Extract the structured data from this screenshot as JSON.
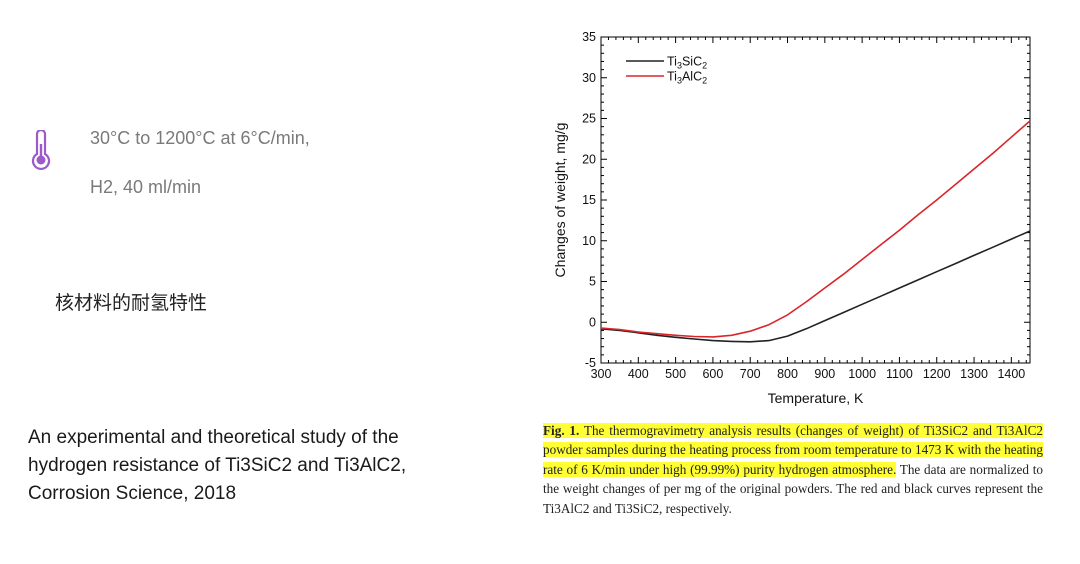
{
  "left_panel": {
    "condition_line1": "30°C to 1200°C at 6°C/min,",
    "condition_line2": "H2, 40 ml/min",
    "chinese_title": "核材料的耐氢特性",
    "reference_line1": "An experimental and theoretical study of the",
    "reference_line2": "hydrogen resistance of Ti3SiC2 and Ti3AlC2,",
    "reference_line3": "Corrosion Science, 2018",
    "icon": "thermometer-icon",
    "icon_color": "#9b59c9"
  },
  "chart_data": {
    "type": "line",
    "xlabel": "Temperature, K",
    "ylabel": "Changes of weight, mg/g",
    "xlim": [
      300,
      1450
    ],
    "ylim": [
      -5,
      35
    ],
    "xticks": [
      300,
      400,
      500,
      600,
      700,
      800,
      900,
      1000,
      1100,
      1200,
      1300,
      1400
    ],
    "yticks": [
      -5,
      0,
      5,
      10,
      15,
      20,
      25,
      30,
      35
    ],
    "legend_position": "top-left",
    "series": [
      {
        "name": "Ti3SiC2",
        "name_parts": [
          "Ti",
          "3",
          "SiC",
          "2"
        ],
        "color": "#222222",
        "x": [
          300,
          350,
          400,
          450,
          500,
          550,
          600,
          650,
          700,
          750,
          800,
          850,
          900,
          950,
          1000,
          1050,
          1100,
          1150,
          1200,
          1250,
          1300,
          1350,
          1400,
          1450
        ],
        "y": [
          -0.8,
          -1.0,
          -1.3,
          -1.6,
          -1.85,
          -2.05,
          -2.25,
          -2.35,
          -2.4,
          -2.25,
          -1.7,
          -0.8,
          0.2,
          1.2,
          2.2,
          3.2,
          4.2,
          5.2,
          6.2,
          7.2,
          8.2,
          9.2,
          10.2,
          11.2
        ]
      },
      {
        "name": "Ti3AlC2",
        "name_parts": [
          "Ti",
          "3",
          "AlC",
          "2"
        ],
        "color": "#d9262b",
        "x": [
          300,
          350,
          400,
          450,
          500,
          550,
          600,
          650,
          700,
          750,
          800,
          850,
          900,
          950,
          1000,
          1050,
          1100,
          1150,
          1200,
          1250,
          1300,
          1350,
          1400,
          1450
        ],
        "y": [
          -0.7,
          -0.9,
          -1.2,
          -1.4,
          -1.6,
          -1.75,
          -1.8,
          -1.6,
          -1.1,
          -0.3,
          0.9,
          2.5,
          4.2,
          5.9,
          7.7,
          9.5,
          11.3,
          13.2,
          15.0,
          16.9,
          18.8,
          20.7,
          22.7,
          24.7
        ]
      }
    ]
  },
  "caption": {
    "fig_label": "Fig. 1.",
    "highlighted_text": "The thermogravimetry analysis results (changes of weight) of Ti3SiC2 and Ti3AlC2 powder samples during the heating process from room temperature to 1473 K with the heating rate of 6 K/min under high (99.99%) purity hydrogen atmosphere.",
    "rest_text": "The data are normalized to the weight changes of per mg of the original powders. The red and black curves represent the Ti3AlC2 and Ti3SiC2, respectively.",
    "highlight_color": "#ffff33"
  }
}
